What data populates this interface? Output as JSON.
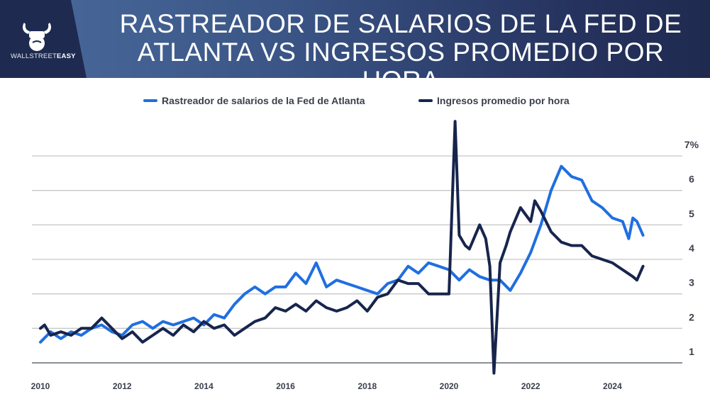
{
  "header": {
    "brand": {
      "name_light": "WALLSTREET",
      "name_bold": "EASY",
      "icon": "bull-fist-icon"
    },
    "title": "RASTREADOR DE SALARIOS DE LA FED DE\nATLANTA VS INGRESOS PROMEDIO POR HORA"
  },
  "colors": {
    "atlanta": "#1f6fe0",
    "ahe": "#17254d",
    "grid": "#c8c8c8",
    "axis_text": "#3a3f4b"
  },
  "chart_data": {
    "type": "line",
    "title": "RASTREADOR DE SALARIOS DE LA FED DE ATLANTA VS INGRESOS PROMEDIO POR HORA",
    "xlabel": "",
    "ylabel": "",
    "xlim": [
      2010,
      2025.3
    ],
    "ylim": [
      1,
      7
    ],
    "y_axis_position": "right",
    "y_ticks": [
      "1",
      "2",
      "3",
      "4",
      "5",
      "6",
      "7%"
    ],
    "x_ticks": [
      "2010",
      "2012",
      "2014",
      "2016",
      "2018",
      "2020",
      "2022",
      "2024"
    ],
    "grid": true,
    "legend": "top-center",
    "series": [
      {
        "name": "Rastreador de salarios de la Fed de Atlanta",
        "color": "#1f6fe0",
        "x": [
          2010.0,
          2010.25,
          2010.5,
          2010.75,
          2011.0,
          2011.25,
          2011.5,
          2011.75,
          2012.0,
          2012.25,
          2012.5,
          2012.75,
          2013.0,
          2013.25,
          2013.5,
          2013.75,
          2014.0,
          2014.25,
          2014.5,
          2014.75,
          2015.0,
          2015.25,
          2015.5,
          2015.75,
          2016.0,
          2016.25,
          2016.5,
          2016.75,
          2017.0,
          2017.25,
          2017.5,
          2017.75,
          2018.0,
          2018.25,
          2018.5,
          2018.75,
          2019.0,
          2019.25,
          2019.5,
          2019.75,
          2020.0,
          2020.25,
          2020.5,
          2020.75,
          2021.0,
          2021.25,
          2021.5,
          2021.75,
          2022.0,
          2022.25,
          2022.5,
          2022.75,
          2023.0,
          2023.25,
          2023.5,
          2023.75,
          2024.0,
          2024.25,
          2024.4,
          2024.5,
          2024.6,
          2024.75
        ],
        "values": [
          1.6,
          1.9,
          1.7,
          1.9,
          1.8,
          2.0,
          2.1,
          1.9,
          1.8,
          2.1,
          2.2,
          2.0,
          2.2,
          2.1,
          2.2,
          2.3,
          2.1,
          2.4,
          2.3,
          2.7,
          3.0,
          3.2,
          3.0,
          3.2,
          3.2,
          3.6,
          3.3,
          3.9,
          3.2,
          3.4,
          3.3,
          3.2,
          3.1,
          3.0,
          3.3,
          3.4,
          3.8,
          3.6,
          3.9,
          3.8,
          3.7,
          3.4,
          3.7,
          3.5,
          3.4,
          3.4,
          3.1,
          3.6,
          4.2,
          5.0,
          6.0,
          6.7,
          6.4,
          6.3,
          5.7,
          5.5,
          5.2,
          5.1,
          4.6,
          5.2,
          5.1,
          4.7
        ]
      },
      {
        "name": "Ingresos promedio por hora",
        "color": "#17254d",
        "x": [
          2010.0,
          2010.1,
          2010.25,
          2010.5,
          2010.75,
          2011.0,
          2011.25,
          2011.5,
          2011.75,
          2012.0,
          2012.25,
          2012.5,
          2012.75,
          2013.0,
          2013.25,
          2013.5,
          2013.75,
          2014.0,
          2014.25,
          2014.5,
          2014.75,
          2015.0,
          2015.25,
          2015.5,
          2015.75,
          2016.0,
          2016.25,
          2016.5,
          2016.75,
          2017.0,
          2017.25,
          2017.5,
          2017.75,
          2018.0,
          2018.25,
          2018.5,
          2018.75,
          2019.0,
          2019.25,
          2019.5,
          2019.75,
          2020.0,
          2020.15,
          2020.25,
          2020.4,
          2020.5,
          2020.75,
          2020.9,
          2021.0,
          2021.1,
          2021.25,
          2021.4,
          2021.5,
          2021.75,
          2022.0,
          2022.1,
          2022.25,
          2022.5,
          2022.75,
          2023.0,
          2023.25,
          2023.5,
          2023.75,
          2024.0,
          2024.25,
          2024.5,
          2024.6,
          2024.75
        ],
        "values": [
          2.0,
          2.1,
          1.8,
          1.9,
          1.8,
          2.0,
          2.0,
          2.3,
          2.0,
          1.7,
          1.9,
          1.6,
          1.8,
          2.0,
          1.8,
          2.1,
          1.9,
          2.2,
          2.0,
          2.1,
          1.8,
          2.0,
          2.2,
          2.3,
          2.6,
          2.5,
          2.7,
          2.5,
          2.8,
          2.6,
          2.5,
          2.6,
          2.8,
          2.5,
          2.9,
          3.0,
          3.4,
          3.3,
          3.3,
          3.0,
          3.0,
          3.0,
          8.0,
          4.7,
          4.4,
          4.3,
          5.0,
          4.6,
          3.8,
          0.7,
          3.9,
          4.4,
          4.8,
          5.5,
          5.1,
          5.7,
          5.4,
          4.8,
          4.5,
          4.4,
          4.4,
          4.1,
          4.0,
          3.9,
          3.7,
          3.5,
          3.4,
          3.8
        ]
      }
    ]
  },
  "legend": {
    "items": [
      {
        "label": "Rastreador de salarios de la Fed de Atlanta",
        "color": "#1f6fe0"
      },
      {
        "label": "Ingresos promedio por hora",
        "color": "#17254d"
      }
    ]
  }
}
